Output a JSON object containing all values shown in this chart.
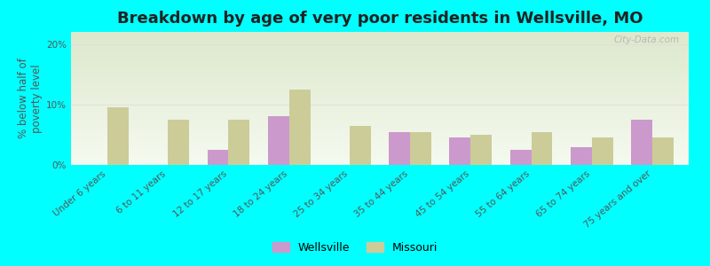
{
  "title": "Breakdown by age of very poor residents in Wellsville, MO",
  "ylabel": "% below half of\npoverty level",
  "categories": [
    "Under 6 years",
    "6 to 11 years",
    "12 to 17 years",
    "18 to 24 years",
    "25 to 34 years",
    "35 to 44 years",
    "45 to 54 years",
    "55 to 64 years",
    "65 to 74 years",
    "75 years and over"
  ],
  "wellsville": [
    0,
    0,
    2.5,
    8.0,
    0,
    5.5,
    4.5,
    2.5,
    3.0,
    7.5
  ],
  "missouri": [
    9.5,
    7.5,
    7.5,
    12.5,
    6.5,
    5.5,
    5.0,
    5.5,
    4.5,
    4.5
  ],
  "wellsville_color": "#cc99cc",
  "missouri_color": "#cccc99",
  "background_color": "#00ffff",
  "plot_bg_top": "#dde8cc",
  "plot_bg_bottom": "#f5faf0",
  "ylim": [
    0,
    22
  ],
  "yticks": [
    0,
    10,
    20
  ],
  "ytick_labels": [
    "0%",
    "10%",
    "20%"
  ],
  "bar_width": 0.35,
  "title_fontsize": 13,
  "axis_label_fontsize": 8.5,
  "tick_fontsize": 7.5,
  "legend_fontsize": 9,
  "watermark_text": "City-Data.com",
  "watermark_color": "#aaaaaa"
}
